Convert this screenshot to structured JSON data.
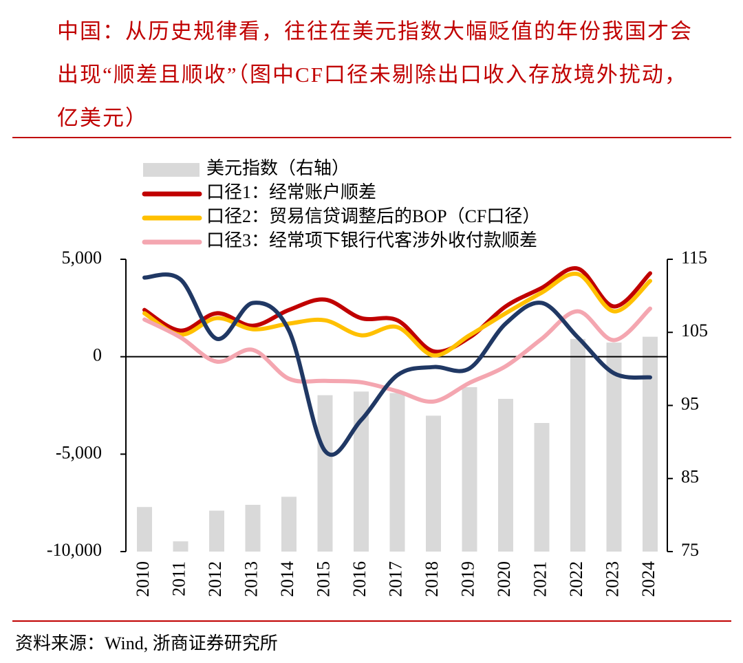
{
  "chart_data": {
    "type": "combo",
    "title": "中国：从历史规律看，往往在美元指数大幅贬值的年份我国才会出现“顺差且顺收”（图中CF口径未剔除出口收入存放境外扰动，亿美元）",
    "source": "资料来源：Wind, 浙商证券研究所",
    "categories": [
      "2010",
      "2011",
      "2012",
      "2013",
      "2014",
      "2015",
      "2016",
      "2017",
      "2018",
      "2019",
      "2020",
      "2021",
      "2022",
      "2023",
      "2024"
    ],
    "ylim": [
      -10000,
      5000
    ],
    "yticks": [
      {
        "value": -10000,
        "label": "-10,000"
      },
      {
        "value": -5000,
        "label": "-5,000"
      },
      0,
      {
        "value": 5000,
        "label": "5,000"
      }
    ],
    "y2lim": [
      75,
      115
    ],
    "y2ticks": [
      75,
      85,
      95,
      105,
      115
    ],
    "series": [
      {
        "name": "美元指数（右轴）",
        "type": "bar",
        "axis": "y2",
        "color": "#d9d9d9",
        "values": [
          81.1,
          76.4,
          80.6,
          81.4,
          82.5,
          96.4,
          96.9,
          96.7,
          93.6,
          97.5,
          95.9,
          92.6,
          104.1,
          103.6,
          104.4
        ]
      },
      {
        "name": "口径1：经常账户顺差",
        "type": "line",
        "color": "#c00000",
        "values": [
          2400,
          1340,
          2230,
          1590,
          2400,
          2930,
          1980,
          1870,
          280,
          990,
          2580,
          3530,
          4520,
          2580,
          4280
        ]
      },
      {
        "name": "口径2：贸易信贷调整后的BOP（CF口径）",
        "type": "line",
        "color": "#ffc000",
        "values": [
          2230,
          1130,
          1980,
          1410,
          1700,
          1870,
          1100,
          1520,
          70,
          1100,
          2230,
          3290,
          4240,
          2330,
          3890
        ]
      },
      {
        "name": "口径3：经常项下银行代客涉外收付款顺差",
        "type": "line",
        "color": "#f4a6b0",
        "values": [
          1910,
          990,
          -250,
          350,
          -1130,
          -1240,
          -1310,
          -1770,
          -2300,
          -1340,
          -490,
          920,
          2330,
          850,
          2470
        ]
      },
      {
        "type": "line",
        "color": "#203864",
        "values": [
          4060,
          3960,
          920,
          2760,
          1340,
          -4840,
          -3250,
          -950,
          -530,
          -600,
          1700,
          2760,
          990,
          -850,
          -1060
        ]
      }
    ]
  }
}
